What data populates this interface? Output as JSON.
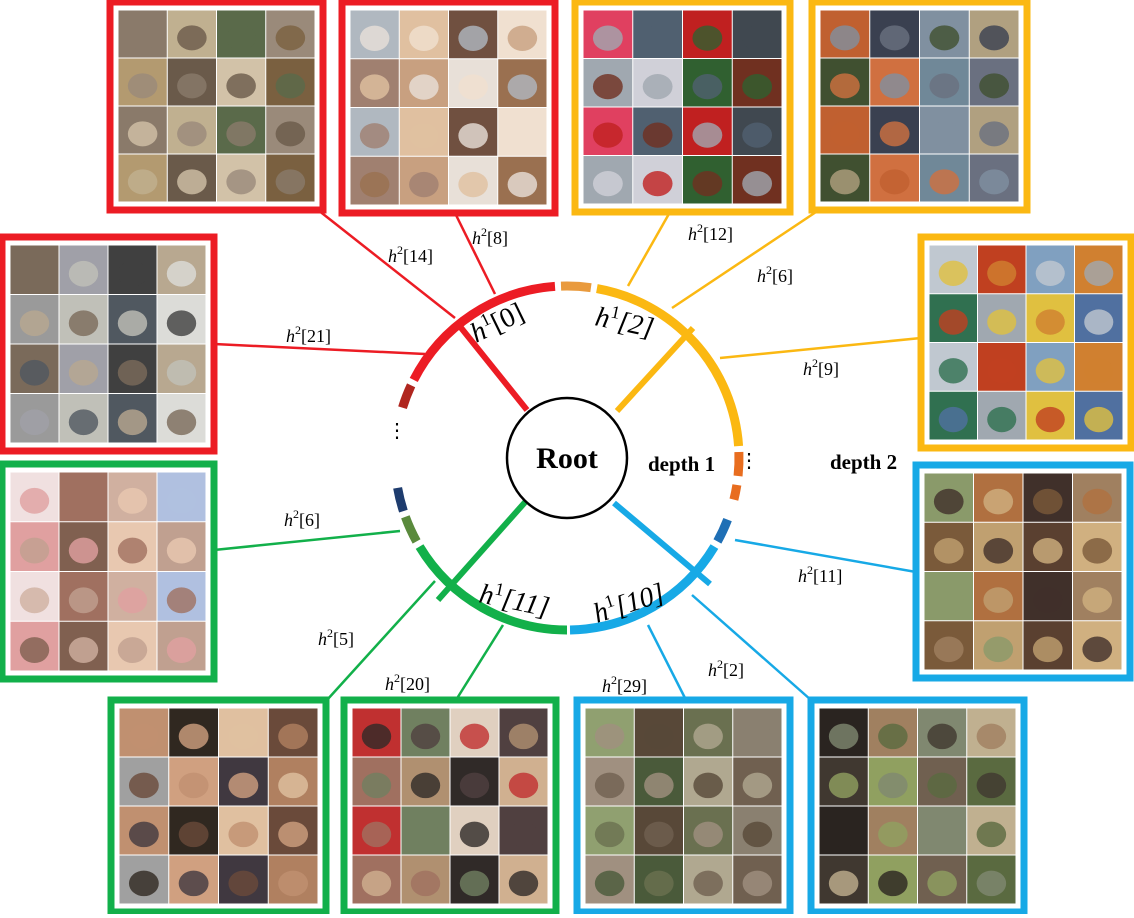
{
  "root_label": "Root",
  "depth_labels": {
    "depth1": "depth 1",
    "depth2": "depth 2"
  },
  "ellipsis": "⋮",
  "colors": {
    "red": "#ec1c24",
    "orange_yellow": "#fbb812",
    "cyan": "#17a9e6",
    "green": "#12b04a",
    "dark_red": "#b0261f",
    "orange": "#e86d1f",
    "light_orange": "#e99a3d",
    "navy": "#1e3c6e",
    "olive_green": "#5a8a3c",
    "blue": "#1f6fb5"
  },
  "depth1_nodes": [
    {
      "base": "h",
      "sup": "1",
      "index": "[0]",
      "color": "red"
    },
    {
      "base": "h",
      "sup": "1",
      "index": "[2]",
      "color": "orange_yellow"
    },
    {
      "base": "h",
      "sup": "1",
      "index": "[10]",
      "color": "cyan"
    },
    {
      "base": "h",
      "sup": "1",
      "index": "[11]",
      "color": "green"
    }
  ],
  "depth2_nodes": [
    {
      "id": "h2-8",
      "base": "h",
      "sup": "2",
      "index": "[8]",
      "parent_color": "red",
      "content": "hamster images"
    },
    {
      "id": "h2-14",
      "base": "h",
      "sup": "2",
      "index": "[14]",
      "parent_color": "red",
      "content": "mouse images"
    },
    {
      "id": "h2-21",
      "base": "h",
      "sup": "2",
      "index": "[21]",
      "parent_color": "red",
      "content": "possum and rabbit images"
    },
    {
      "id": "h2-12",
      "base": "h",
      "sup": "2",
      "index": "[12]",
      "parent_color": "orange_yellow",
      "content": "pickup truck images"
    },
    {
      "id": "h2-6a",
      "base": "h",
      "sup": "2",
      "index": "[6]",
      "parent_color": "orange_yellow",
      "content": "train images"
    },
    {
      "id": "h2-9",
      "base": "h",
      "sup": "2",
      "index": "[9]",
      "parent_color": "orange_yellow",
      "content": "streetcar and bus images"
    },
    {
      "id": "h2-11",
      "base": "h",
      "sup": "2",
      "index": "[11]",
      "parent_color": "cyan",
      "content": "camel and bear images"
    },
    {
      "id": "h2-2",
      "base": "h",
      "sup": "2",
      "index": "[2]",
      "parent_color": "cyan",
      "content": "cattle images"
    },
    {
      "id": "h2-29",
      "base": "h",
      "sup": "2",
      "index": "[29]",
      "parent_color": "cyan",
      "content": "elephant images"
    },
    {
      "id": "h2-20",
      "base": "h",
      "sup": "2",
      "index": "[20]",
      "parent_color": "green",
      "content": "boy images"
    },
    {
      "id": "h2-5",
      "base": "h",
      "sup": "2",
      "index": "[5]",
      "parent_color": "green",
      "content": "girl and woman images"
    },
    {
      "id": "h2-6b",
      "base": "h",
      "sup": "2",
      "index": "[6]",
      "parent_color": "green",
      "content": "baby images"
    }
  ]
}
